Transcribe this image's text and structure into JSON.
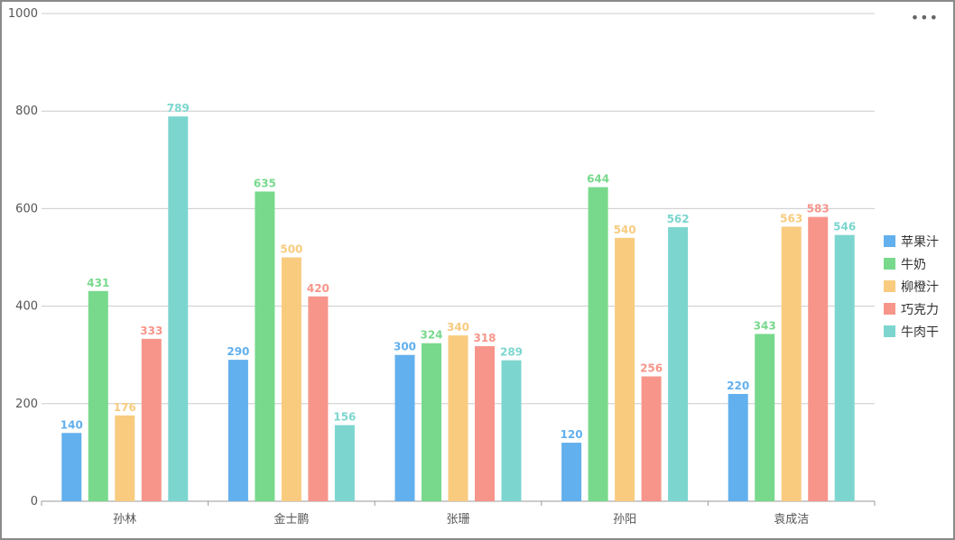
{
  "toolbar": {
    "more_label": "•••",
    "more_icon": "more-dots-icon"
  },
  "chart_data": {
    "type": "bar",
    "title": "",
    "xlabel": "",
    "ylabel": "",
    "ylim": [
      0,
      1000
    ],
    "yticks": [
      0,
      200,
      400,
      600,
      800,
      1000
    ],
    "grid": true,
    "legend": "right",
    "categories": [
      "孙林",
      "金士鹏",
      "张珊",
      "孙阳",
      "袁成洁"
    ],
    "series": [
      {
        "name": "苹果汁",
        "color": "#62b0ed",
        "values": [
          140,
          290,
          300,
          120,
          220
        ]
      },
      {
        "name": "牛奶",
        "color": "#78d98c",
        "values": [
          431,
          635,
          324,
          644,
          343
        ]
      },
      {
        "name": "柳橙汁",
        "color": "#f8cb7f",
        "values": [
          176,
          500,
          340,
          540,
          563
        ]
      },
      {
        "name": "巧克力",
        "color": "#f7958a",
        "values": [
          333,
          420,
          318,
          256,
          583
        ]
      },
      {
        "name": "牛肉干",
        "color": "#7cd6cf",
        "values": [
          789,
          156,
          289,
          562,
          546
        ]
      }
    ]
  }
}
